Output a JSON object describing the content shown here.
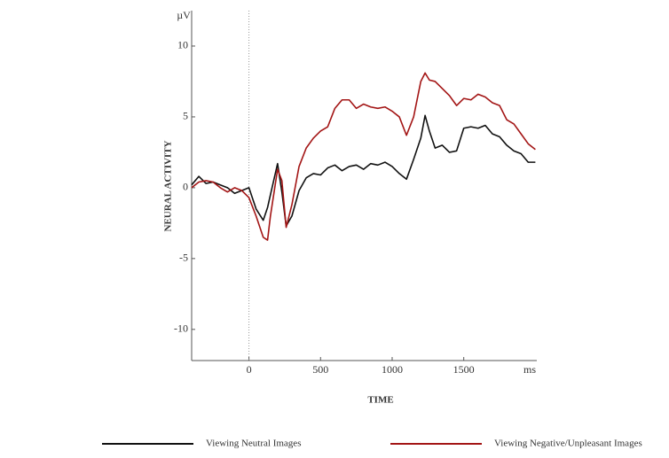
{
  "chart_data": {
    "type": "line",
    "y_axis_label": "NEURAL ACTIVITY",
    "x_axis_label": "TIME",
    "y_unit": "µV",
    "x_unit": "ms",
    "x": [
      -400,
      -350,
      -300,
      -250,
      -200,
      -150,
      -100,
      -50,
      0,
      50,
      100,
      130,
      150,
      200,
      230,
      260,
      300,
      350,
      400,
      450,
      500,
      550,
      600,
      650,
      700,
      750,
      800,
      850,
      900,
      950,
      1000,
      1050,
      1100,
      1150,
      1200,
      1230,
      1260,
      1300,
      1350,
      1400,
      1450,
      1500,
      1550,
      1600,
      1650,
      1700,
      1750,
      1800,
      1850,
      1900,
      1950,
      2000
    ],
    "series": [
      {
        "name": "Viewing Neutral Images",
        "color": "#111111",
        "values": [
          0.2,
          0.8,
          0.3,
          0.4,
          0.2,
          0.0,
          -0.4,
          -0.2,
          0.0,
          -1.5,
          -2.3,
          -1.4,
          -0.5,
          1.7,
          -0.3,
          -2.7,
          -2.0,
          -0.2,
          0.7,
          1.0,
          0.9,
          1.4,
          1.6,
          1.2,
          1.5,
          1.6,
          1.3,
          1.7,
          1.6,
          1.8,
          1.5,
          1.0,
          0.6,
          2.0,
          3.5,
          5.1,
          4.0,
          2.8,
          3.0,
          2.5,
          2.6,
          4.2,
          4.3,
          4.2,
          4.4,
          3.8,
          3.6,
          3.0,
          2.6,
          2.4,
          1.8,
          1.8
        ]
      },
      {
        "name": "Viewing Negative/Unpleasant Images",
        "color": "#a31515",
        "values": [
          0.0,
          0.4,
          0.5,
          0.4,
          0.0,
          -0.3,
          0.0,
          -0.2,
          -0.7,
          -2.0,
          -3.5,
          -3.7,
          -2.0,
          1.3,
          0.5,
          -2.8,
          -1.2,
          1.5,
          2.8,
          3.5,
          4.0,
          4.3,
          5.6,
          6.2,
          6.2,
          5.6,
          5.9,
          5.7,
          5.6,
          5.7,
          5.4,
          5.0,
          3.7,
          5.0,
          7.5,
          8.1,
          7.6,
          7.5,
          7.0,
          6.5,
          5.8,
          6.3,
          6.2,
          6.6,
          6.4,
          6.0,
          5.8,
          4.8,
          4.5,
          3.8,
          3.1,
          2.7
        ]
      }
    ],
    "xlim": [
      -400,
      2010
    ],
    "xticks": [
      0,
      500,
      1000,
      1500
    ],
    "ylim": [
      -12.2,
      12.5
    ],
    "yticks": [
      -10,
      -5,
      0,
      5,
      10
    ],
    "grid": false
  }
}
